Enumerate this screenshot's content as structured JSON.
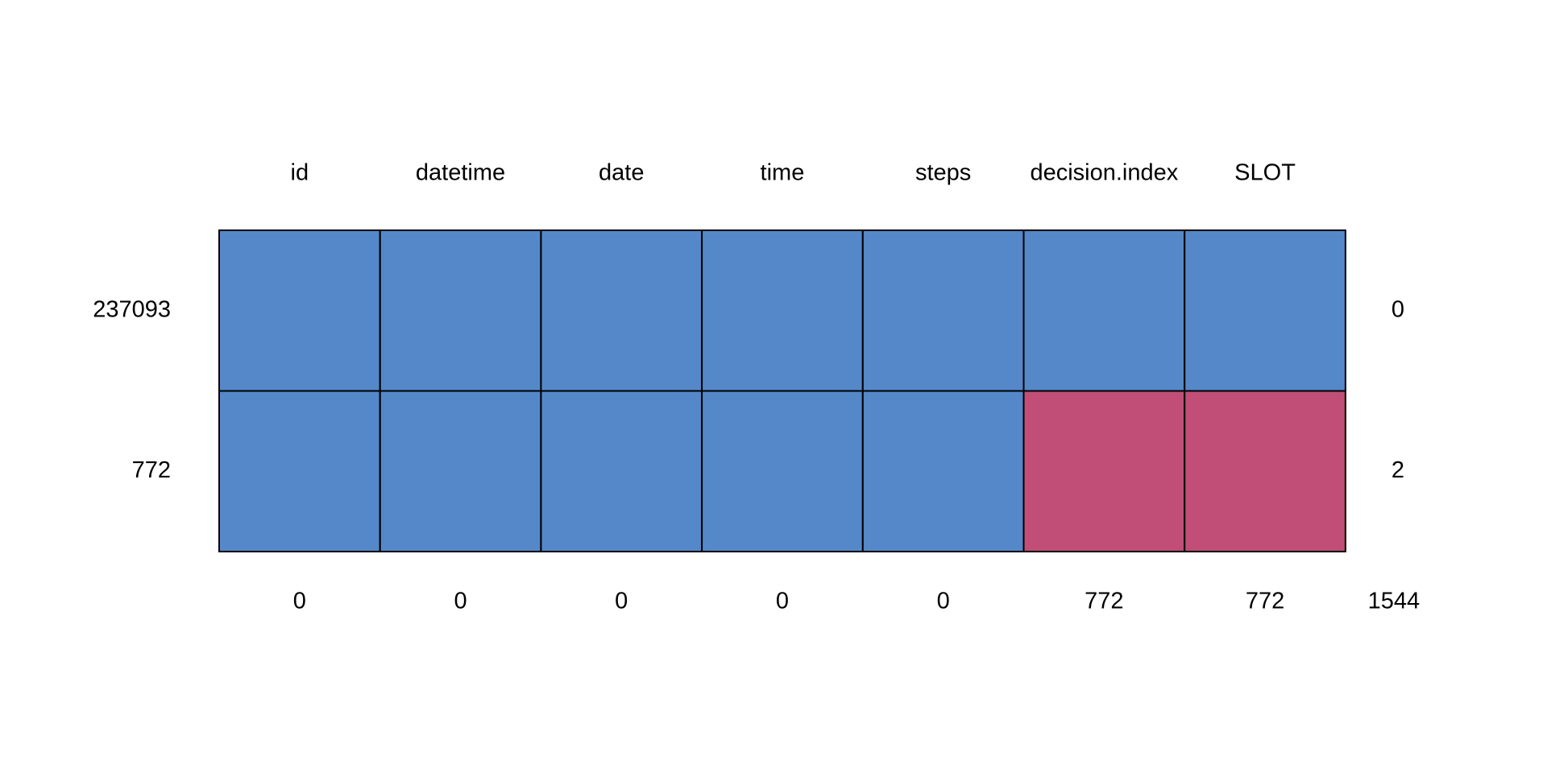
{
  "chart_data": {
    "type": "heatmap",
    "title": "",
    "columns": [
      "id",
      "datetime",
      "date",
      "time",
      "steps",
      "decision.index",
      "SLOT"
    ],
    "rows": [
      {
        "count": "237093",
        "missing_vars": "0",
        "pattern": [
          0,
          0,
          0,
          0,
          0,
          0,
          0
        ]
      },
      {
        "count": "772",
        "missing_vars": "2",
        "pattern": [
          0,
          0,
          0,
          0,
          0,
          1,
          1
        ]
      }
    ],
    "column_missing_totals": [
      "0",
      "0",
      "0",
      "0",
      "0",
      "772",
      "772"
    ],
    "total_missing": "1544",
    "legend": {
      "observed": 0,
      "missing": 1
    },
    "colors": {
      "observed": "#5488C9",
      "missing": "#C04E77",
      "border": "#000000"
    }
  }
}
